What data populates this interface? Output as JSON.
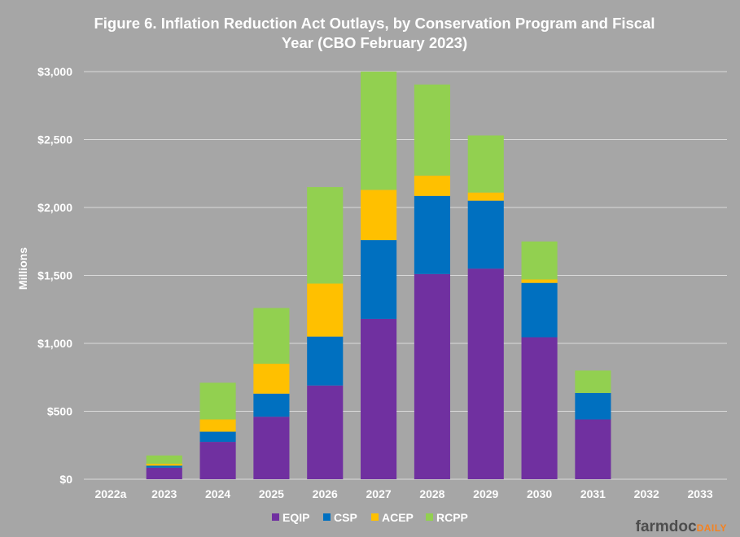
{
  "chart_data": {
    "type": "bar",
    "stacked": true,
    "title_lines": [
      "Figure 6. Inflation Reduction Act Outlays, by Conservation Program and Fiscal",
      "Year (CBO February 2023)"
    ],
    "ylabel": "Millions",
    "ylim": [
      0,
      3000
    ],
    "yticks": [
      0,
      500,
      1000,
      1500,
      2000,
      2500,
      3000
    ],
    "ytick_labels": [
      "$0",
      "$500",
      "$1,000",
      "$1,500",
      "$2,000",
      "$2,500",
      "$3,000"
    ],
    "grid": true,
    "legend_position": "bottom",
    "categories": [
      "2022a",
      "2023",
      "2024",
      "2025",
      "2026",
      "2027",
      "2028",
      "2029",
      "2030",
      "2031",
      "2032",
      "2033"
    ],
    "series": [
      {
        "name": "EQIP",
        "color": "#7030a0",
        "values": [
          0,
          85,
          275,
          460,
          690,
          1180,
          1510,
          1550,
          1045,
          440,
          0,
          0
        ]
      },
      {
        "name": "CSP",
        "color": "#0070c0",
        "values": [
          0,
          15,
          75,
          170,
          360,
          580,
          575,
          500,
          400,
          195,
          0,
          0
        ]
      },
      {
        "name": "ACEP",
        "color": "#ffc000",
        "values": [
          0,
          15,
          90,
          220,
          390,
          370,
          150,
          60,
          25,
          0,
          0,
          0
        ]
      },
      {
        "name": "RCPP",
        "color": "#92d050",
        "values": [
          0,
          60,
          270,
          410,
          710,
          870,
          670,
          420,
          280,
          165,
          0,
          0
        ]
      }
    ]
  },
  "brand": {
    "part1": "farmdoc",
    "part2": "DAILY"
  }
}
